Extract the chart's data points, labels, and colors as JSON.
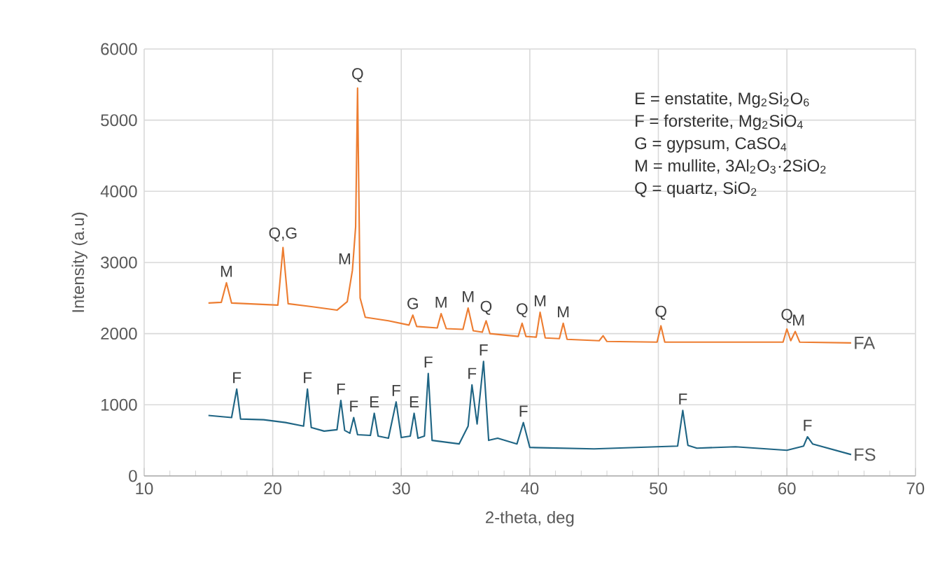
{
  "chart_data": {
    "type": "line",
    "xlabel": "2-theta, deg",
    "ylabel": "Intensity (a.u)",
    "xlim": [
      10,
      70
    ],
    "xticks": [
      10,
      20,
      30,
      40,
      50,
      60,
      70
    ],
    "ylim": [
      0,
      6000
    ],
    "yticks": [
      0,
      1000,
      2000,
      3000,
      4000,
      5000,
      6000
    ],
    "grid": true,
    "legend": false,
    "series": [
      {
        "name": "FA",
        "color": "#ed7d31",
        "x": [
          15,
          16.0,
          16.4,
          16.8,
          18,
          20.4,
          20.8,
          21.2,
          23,
          25,
          25.8,
          26.2,
          26.45,
          26.6,
          26.8,
          27.2,
          29,
          30.6,
          30.9,
          31.2,
          32.8,
          33.1,
          33.5,
          34.8,
          35.2,
          35.6,
          36.3,
          36.6,
          36.9,
          38,
          39.1,
          39.4,
          39.7,
          40.5,
          40.8,
          41.2,
          42.3,
          42.6,
          42.9,
          45.4,
          45.7,
          46,
          49.9,
          50.2,
          50.5,
          55,
          59.7,
          60.0,
          60.3,
          60.65,
          61,
          65
        ],
        "values": [
          2430,
          2440,
          2715,
          2430,
          2420,
          2400,
          3210,
          2420,
          2380,
          2330,
          2450,
          2890,
          3500,
          5450,
          2500,
          2230,
          2180,
          2120,
          2260,
          2100,
          2080,
          2280,
          2070,
          2060,
          2360,
          2040,
          2020,
          2180,
          2000,
          1980,
          1960,
          2145,
          1960,
          1950,
          2300,
          1940,
          1930,
          2145,
          1920,
          1900,
          1970,
          1890,
          1880,
          2110,
          1880,
          1880,
          1880,
          2065,
          1900,
          2030,
          1880,
          1870
        ]
      },
      {
        "name": "FS",
        "color": "#1f6584",
        "x": [
          15,
          16.8,
          17.2,
          17.5,
          19.3,
          21,
          22.4,
          22.7,
          23,
          24,
          25.0,
          25.3,
          25.6,
          26.0,
          26.3,
          26.6,
          27.6,
          27.9,
          28.2,
          29.0,
          29.6,
          30.0,
          30.7,
          31.0,
          31.3,
          31.8,
          32.1,
          32.4,
          34.5,
          35.2,
          35.5,
          35.9,
          36.4,
          36.8,
          37.5,
          39.0,
          39.5,
          40.0,
          45,
          51.5,
          51.9,
          52.3,
          53,
          56,
          60,
          61.3,
          61.6,
          62,
          65
        ],
        "values": [
          850,
          820,
          1220,
          800,
          790,
          750,
          700,
          1220,
          680,
          630,
          650,
          1060,
          640,
          600,
          820,
          580,
          570,
          880,
          560,
          530,
          1040,
          540,
          560,
          880,
          530,
          560,
          1440,
          500,
          450,
          700,
          1280,
          730,
          1610,
          500,
          530,
          450,
          750,
          400,
          380,
          420,
          920,
          430,
          390,
          410,
          360,
          420,
          550,
          450,
          300
        ]
      }
    ],
    "annotations": [
      "E = enstatite, Mg$_{2}$Si$_{2}$O$_{6}$",
      "F = forsterite, Mg$_{2}$SiO$_{4}$",
      "G = gypsum, CaSO$_{4}$",
      "M = mullite, 3Al$_{2}$O$_{3}$·2SiO$_{2}$",
      "Q = quartz, SiO$_{2}$",
      {
        "text": "M",
        "x": 16.4,
        "y": 2715
      },
      {
        "text": "Q,G",
        "x": 20.8,
        "y": 3210
      },
      {
        "text": "M",
        "x": 25.6,
        "y": 2890
      },
      {
        "text": "Q",
        "x": 26.6,
        "y": 5450
      },
      {
        "text": "G",
        "x": 30.9,
        "y": 2260
      },
      {
        "text": "M",
        "x": 33.1,
        "y": 2280
      },
      {
        "text": "M",
        "x": 35.2,
        "y": 2360
      },
      {
        "text": "Q",
        "x": 36.6,
        "y": 2180
      },
      {
        "text": "Q",
        "x": 39.4,
        "y": 2145
      },
      {
        "text": "M",
        "x": 40.8,
        "y": 2300
      },
      {
        "text": "M",
        "x": 42.6,
        "y": 2145
      },
      {
        "text": "Q",
        "x": 50.2,
        "y": 2110
      },
      {
        "text": "Q",
        "x": 60.0,
        "y": 2065
      },
      {
        "text": "M",
        "x": 60.9,
        "y": 2030
      },
      {
        "text": "F",
        "x": 17.2,
        "y": 1220
      },
      {
        "text": "F",
        "x": 22.7,
        "y": 1220
      },
      {
        "text": "F",
        "x": 25.3,
        "y": 1060
      },
      {
        "text": "F",
        "x": 26.3,
        "y": 820
      },
      {
        "text": "E",
        "x": 27.9,
        "y": 880
      },
      {
        "text": "F",
        "x": 29.6,
        "y": 1040
      },
      {
        "text": "E",
        "x": 31.0,
        "y": 880
      },
      {
        "text": "F",
        "x": 32.1,
        "y": 1440
      },
      {
        "text": "F",
        "x": 35.5,
        "y": 1280
      },
      {
        "text": "F",
        "x": 36.4,
        "y": 1610
      },
      {
        "text": "F",
        "x": 39.5,
        "y": 750
      },
      {
        "text": "F",
        "x": 51.9,
        "y": 920
      },
      {
        "text": "F",
        "x": 61.6,
        "y": 550
      }
    ]
  }
}
